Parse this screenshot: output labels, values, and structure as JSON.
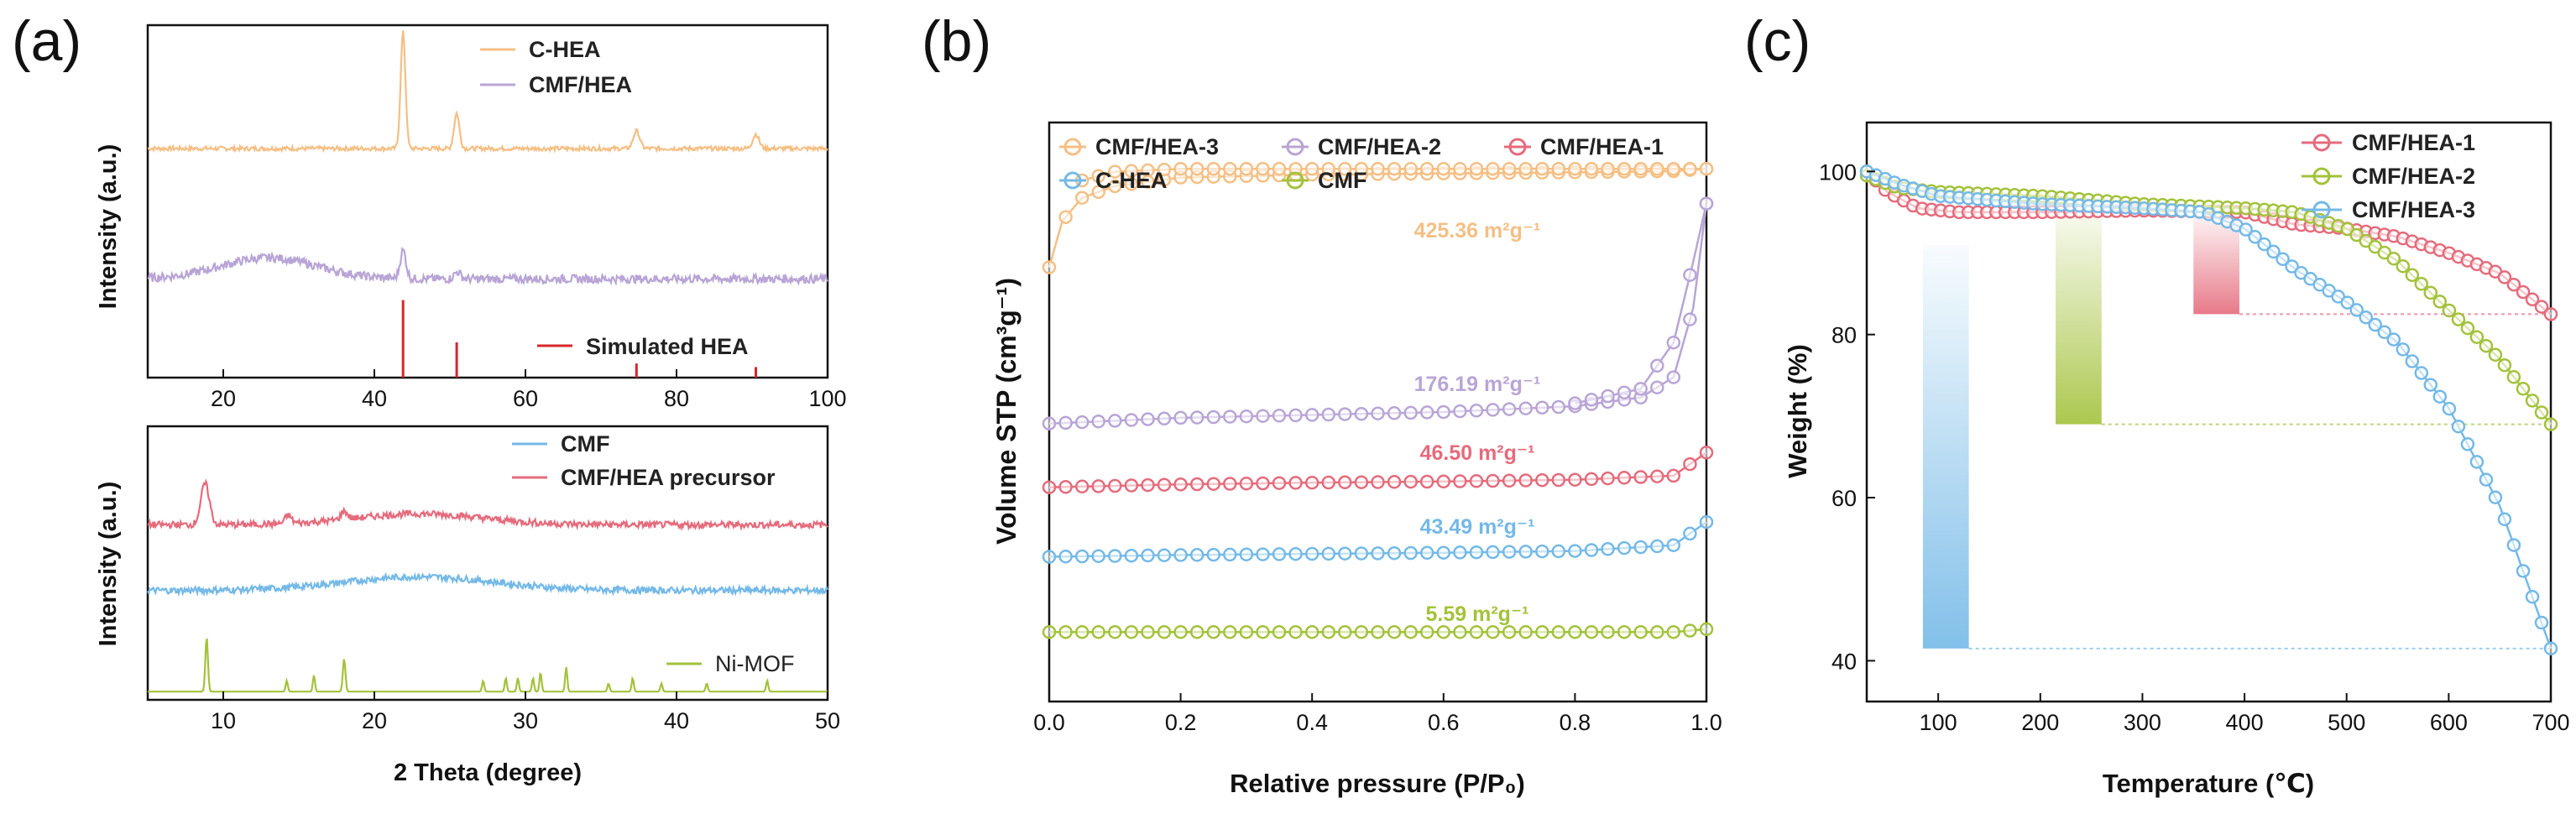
{
  "panels": [
    {
      "label": "(a)"
    },
    {
      "label": "(b)"
    },
    {
      "label": "(c)"
    }
  ],
  "chart_data": [
    {
      "id": "a-top",
      "type": "line",
      "xlabel": "",
      "ylabel": "Intensity (a.u.)",
      "xlim": [
        10,
        100
      ],
      "xticks": [
        20,
        40,
        60,
        80,
        100
      ],
      "series": [
        {
          "name": "C-HEA",
          "color": "#f5bf84",
          "baseline": 0.35,
          "peaks": [
            [
              43.8,
              0.33,
              0.45
            ],
            [
              50.9,
              0.1,
              0.5
            ],
            [
              74.7,
              0.05,
              0.6
            ],
            [
              90.5,
              0.04,
              0.6
            ]
          ],
          "noise": 0.006
        },
        {
          "name": "CMF/HEA",
          "color": "#b8a5d6",
          "baseline": 0.72,
          "humps": [
            [
              26,
              0.06,
              9
            ]
          ],
          "peaks": [
            [
              43.8,
              0.08,
              0.55
            ],
            [
              51,
              0.02,
              0.6
            ]
          ],
          "noise": 0.012
        },
        {
          "name": "Simulated HEA",
          "color": "#d62728",
          "type": "stick",
          "sticks": [
            [
              43.8,
              0.22
            ],
            [
              50.9,
              0.1
            ],
            [
              74.7,
              0.04
            ],
            [
              90.5,
              0.03
            ]
          ]
        }
      ]
    },
    {
      "id": "a-bottom",
      "type": "line",
      "xlabel": "2 Theta (degree)",
      "ylabel": "Intensity (a.u.)",
      "xlim": [
        5,
        50
      ],
      "xticks": [
        10,
        20,
        30,
        40,
        50
      ],
      "series": [
        {
          "name": "CMF",
          "color": "#74b9e7",
          "baseline": 0.6,
          "humps": [
            [
              23,
              0.05,
              7
            ]
          ],
          "noise": 0.012
        },
        {
          "name": "CMF/HEA precursor",
          "color": "#e56b7c",
          "baseline": 0.36,
          "humps": [
            [
              23,
              0.04,
              6
            ]
          ],
          "peaks": [
            [
              8.8,
              0.15,
              0.4
            ],
            [
              14.3,
              0.03,
              0.3
            ],
            [
              18,
              0.03,
              0.3
            ]
          ],
          "noise": 0.012
        },
        {
          "name": "Ni-MOF",
          "color": "#a3c23b",
          "type": "pattern",
          "baseline": 0.97,
          "peaks": [
            [
              8.9,
              0.2,
              0.12
            ],
            [
              14.2,
              0.04,
              0.1
            ],
            [
              16,
              0.06,
              0.1
            ],
            [
              18,
              0.12,
              0.12
            ],
            [
              27.2,
              0.04,
              0.1
            ],
            [
              28.7,
              0.05,
              0.1
            ],
            [
              29.5,
              0.05,
              0.1
            ],
            [
              30.5,
              0.05,
              0.1
            ],
            [
              31,
              0.07,
              0.1
            ],
            [
              32.7,
              0.09,
              0.1
            ],
            [
              35.5,
              0.03,
              0.1
            ],
            [
              37.1,
              0.05,
              0.1
            ],
            [
              39,
              0.03,
              0.1
            ],
            [
              42,
              0.03,
              0.1
            ],
            [
              46,
              0.04,
              0.1
            ]
          ]
        }
      ]
    },
    {
      "id": "b",
      "type": "line",
      "xlabel": "Relative pressure (P/P₀)",
      "ylabel": "Volume STP (cm³g⁻¹)",
      "xlim": [
        0.0,
        1.0
      ],
      "ylim": [
        0,
        100
      ],
      "xticks": [
        0.0,
        0.2,
        0.4,
        0.6,
        0.8,
        1.0
      ],
      "xtick_labels": [
        "0.0",
        "0.2",
        "0.4",
        "0.6",
        "0.8",
        "1.0"
      ],
      "series": [
        {
          "name": "CMF/HEA-3",
          "color": "#f5bf84",
          "area": "425.36 m²g⁻¹",
          "points": [
            [
              0.0,
              75
            ],
            [
              0.02,
              83
            ],
            [
              0.05,
              87
            ],
            [
              0.1,
              89
            ],
            [
              0.2,
              90.5
            ],
            [
              0.4,
              91
            ],
            [
              0.6,
              91.2
            ],
            [
              0.8,
              91.4
            ],
            [
              0.95,
              91.6
            ],
            [
              1.0,
              92
            ]
          ],
          "desorption": [
            [
              1.0,
              92
            ],
            [
              0.8,
              92
            ],
            [
              0.6,
              92
            ],
            [
              0.4,
              92
            ],
            [
              0.2,
              92
            ],
            [
              0.1,
              91.5
            ],
            [
              0.05,
              90
            ]
          ]
        },
        {
          "name": "CMF/HEA-2",
          "color": "#b8a5d6",
          "area": "176.19 m²g⁻¹",
          "points": [
            [
              0.0,
              48
            ],
            [
              0.2,
              49
            ],
            [
              0.4,
              49.5
            ],
            [
              0.6,
              50
            ],
            [
              0.8,
              51
            ],
            [
              0.9,
              52.5
            ],
            [
              0.95,
              56
            ],
            [
              0.98,
              68
            ],
            [
              1.0,
              86
            ]
          ],
          "desorption": [
            [
              1.0,
              86
            ],
            [
              0.98,
              76
            ],
            [
              0.95,
              62
            ],
            [
              0.9,
              54
            ],
            [
              0.8,
              51.5
            ]
          ]
        },
        {
          "name": "CMF/HEA-1",
          "color": "#e56b7c",
          "area": "46.50 m²g⁻¹",
          "points": [
            [
              0.0,
              37
            ],
            [
              0.2,
              37.5
            ],
            [
              0.4,
              37.8
            ],
            [
              0.6,
              38
            ],
            [
              0.8,
              38.3
            ],
            [
              0.95,
              39
            ],
            [
              1.0,
              43
            ]
          ]
        },
        {
          "name": "C-HEA",
          "color": "#74b9e7",
          "area": "43.49 m²g⁻¹",
          "points": [
            [
              0.0,
              25
            ],
            [
              0.2,
              25.3
            ],
            [
              0.4,
              25.5
            ],
            [
              0.6,
              25.7
            ],
            [
              0.8,
              26
            ],
            [
              0.95,
              27
            ],
            [
              1.0,
              31
            ]
          ]
        },
        {
          "name": "CMF",
          "color": "#a3c23b",
          "area": "5.59 m²g⁻¹",
          "points": [
            [
              0.0,
              12
            ],
            [
              0.2,
              12
            ],
            [
              0.4,
              12
            ],
            [
              0.6,
              12
            ],
            [
              0.8,
              12
            ],
            [
              0.95,
              12
            ],
            [
              1.0,
              12.5
            ]
          ]
        }
      ]
    },
    {
      "id": "c",
      "type": "line",
      "xlabel": "Temperature (℃)",
      "ylabel": "Weight (%)",
      "xlim": [
        30,
        700
      ],
      "ylim": [
        35,
        106
      ],
      "xticks": [
        100,
        200,
        300,
        400,
        500,
        600,
        700
      ],
      "yticks": [
        40,
        60,
        80,
        100
      ],
      "series": [
        {
          "name": "CMF/HEA-1",
          "color": "#e56b7c",
          "points": [
            [
              30,
              100
            ],
            [
              50,
              97.5
            ],
            [
              80,
              95.5
            ],
            [
              120,
              95
            ],
            [
              200,
              95
            ],
            [
              300,
              95.2
            ],
            [
              400,
              95
            ],
            [
              450,
              93.5
            ],
            [
              500,
              93
            ],
            [
              550,
              92
            ],
            [
              600,
              90
            ],
            [
              650,
              87.5
            ],
            [
              700,
              82.5
            ]
          ]
        },
        {
          "name": "CMF/HEA-2",
          "color": "#a3c23b",
          "points": [
            [
              30,
              99.5
            ],
            [
              60,
              98
            ],
            [
              100,
              97.5
            ],
            [
              200,
              97
            ],
            [
              300,
              96
            ],
            [
              400,
              95.5
            ],
            [
              450,
              95
            ],
            [
              500,
              93
            ],
            [
              550,
              89
            ],
            [
              600,
              83
            ],
            [
              650,
              77
            ],
            [
              700,
              69
            ]
          ]
        },
        {
          "name": "CMF/HEA-3",
          "color": "#74b9e7",
          "points": [
            [
              30,
              100
            ],
            [
              60,
              98.5
            ],
            [
              100,
              97
            ],
            [
              200,
              96
            ],
            [
              300,
              95.5
            ],
            [
              360,
              95
            ],
            [
              400,
              93
            ],
            [
              450,
              88
            ],
            [
              500,
              84
            ],
            [
              550,
              79
            ],
            [
              600,
              71
            ],
            [
              650,
              59
            ],
            [
              700,
              41.5
            ]
          ]
        }
      ],
      "bars": [
        {
          "color": "#74b9e7",
          "x_range": [
            85,
            130
          ],
          "y_range": [
            41.5,
            91
          ]
        },
        {
          "color": "#a3c23b",
          "x_range": [
            215,
            260
          ],
          "y_range": [
            69,
            96
          ]
        },
        {
          "color": "#e56b7c",
          "x_range": [
            350,
            395
          ],
          "y_range": [
            82.5,
            95
          ]
        }
      ]
    }
  ]
}
